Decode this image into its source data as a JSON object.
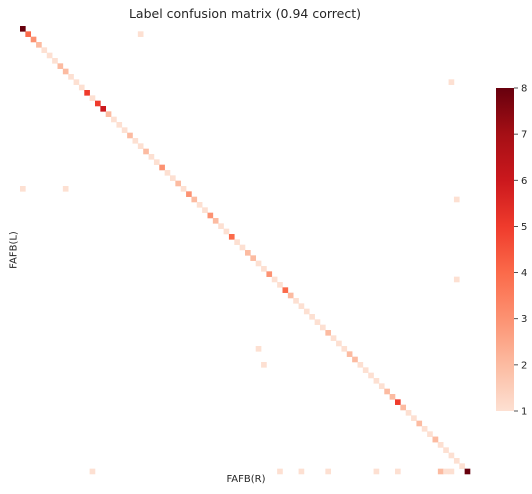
{
  "chart_data": {
    "type": "heatmap",
    "title": "Label confusion matrix (0.94 correct)",
    "xlabel": "FAFB(R)",
    "ylabel": "FAFB(L)",
    "n_rows": 84,
    "n_cols": 84,
    "value_range": [
      1,
      8
    ],
    "colormap": "Reds",
    "empty_color": "#ffffff",
    "colorbar": {
      "ticks": [
        "1",
        "2",
        "3",
        "4",
        "5",
        "6",
        "7",
        "8"
      ],
      "colors": [
        "#fde0d2",
        "#fcbba1",
        "#fc9272",
        "#fb6a4a",
        "#ef3b2c",
        "#cb181d",
        "#a50f15",
        "#67000d"
      ]
    },
    "diagonal_values": [
      8,
      4,
      3,
      2,
      1,
      1,
      1,
      2,
      2,
      1,
      1,
      1,
      5,
      1,
      5,
      6,
      2,
      1,
      1,
      1,
      2,
      1,
      1,
      2,
      1,
      1,
      3,
      1,
      1,
      2,
      1,
      3,
      2,
      1,
      1,
      3,
      2,
      1,
      1,
      4,
      1,
      1,
      2,
      2,
      1,
      1,
      3,
      1,
      1,
      4,
      2,
      1,
      1,
      1,
      1,
      1,
      1,
      2,
      1,
      1,
      1,
      2,
      2,
      1,
      1,
      1,
      1,
      1,
      2,
      2,
      5,
      2,
      1,
      1,
      2,
      1,
      1,
      2,
      1,
      1,
      1,
      1,
      1,
      8
    ],
    "off_diagonal_cells": [
      {
        "row": 1,
        "col": 22,
        "value": 1
      },
      {
        "row": 10,
        "col": 80,
        "value": 1
      },
      {
        "row": 30,
        "col": 0,
        "value": 1
      },
      {
        "row": 30,
        "col": 8,
        "value": 1
      },
      {
        "row": 32,
        "col": 81,
        "value": 1
      },
      {
        "row": 47,
        "col": 81,
        "value": 1
      },
      {
        "row": 60,
        "col": 44,
        "value": 1
      },
      {
        "row": 63,
        "col": 45,
        "value": 1
      },
      {
        "row": 77,
        "col": 77,
        "value": 2
      },
      {
        "row": 78,
        "col": 78,
        "value": 1
      },
      {
        "row": 83,
        "col": 13,
        "value": 1
      },
      {
        "row": 83,
        "col": 48,
        "value": 1
      },
      {
        "row": 83,
        "col": 52,
        "value": 1
      },
      {
        "row": 83,
        "col": 57,
        "value": 1
      },
      {
        "row": 83,
        "col": 66,
        "value": 1
      },
      {
        "row": 83,
        "col": 70,
        "value": 1
      },
      {
        "row": 83,
        "col": 78,
        "value": 2
      },
      {
        "row": 83,
        "col": 79,
        "value": 1
      },
      {
        "row": 83,
        "col": 80,
        "value": 1
      }
    ]
  }
}
